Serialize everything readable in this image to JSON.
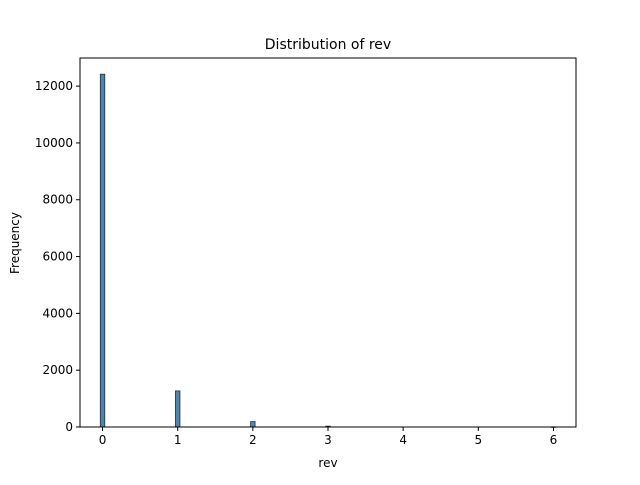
{
  "chart_data": {
    "type": "bar",
    "title": "Distribution of rev",
    "xlabel": "rev",
    "ylabel": "Frequency",
    "xlim": [
      -0.3,
      6.3
    ],
    "ylim": [
      0,
      12990
    ],
    "x_ticks": [
      0,
      1,
      2,
      3,
      4,
      5,
      6
    ],
    "y_ticks": [
      0,
      2000,
      4000,
      6000,
      8000,
      10000,
      12000
    ],
    "bin_width": 0.06,
    "bins": [
      {
        "x": 0,
        "value": 12420
      },
      {
        "x": 1,
        "value": 1270
      },
      {
        "x": 2,
        "value": 190
      },
      {
        "x": 3,
        "value": 30
      },
      {
        "x": 6,
        "value": 5
      }
    ],
    "grid": false,
    "legend": "none",
    "bar_color": "#4e85ad",
    "bar_edge_color": "#1f2f3f"
  }
}
